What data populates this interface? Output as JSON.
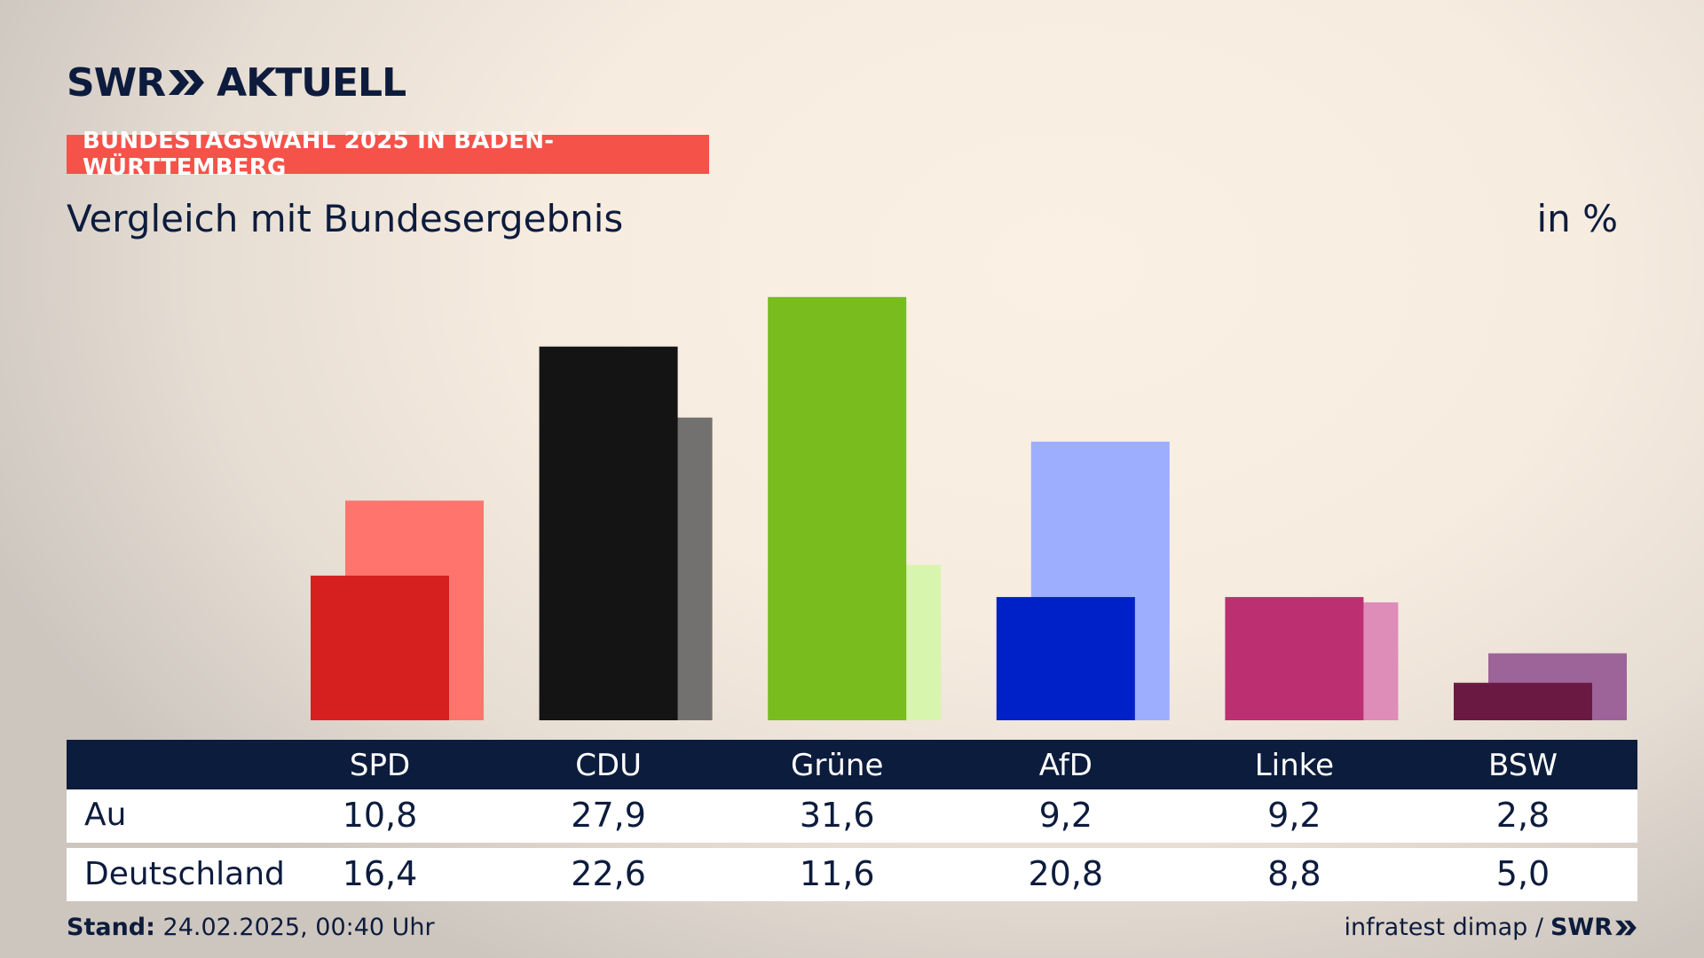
{
  "logo": {
    "brand": "SWR",
    "title": "AKTUELL"
  },
  "badge": "BUNDESTAGSWAHL 2025 IN BADEN-WÜRTTEMBERG",
  "subtitle": "Vergleich mit Bundesergebnis",
  "unit": "in %",
  "colors": {
    "background": "#f7ece0",
    "badge": "#f5524a",
    "header": "#0c1c3c",
    "text": "#0d1c3d"
  },
  "chart_data": {
    "type": "bar",
    "categories": [
      "SPD",
      "CDU",
      "Grüne",
      "AfD",
      "Linke",
      "BSW"
    ],
    "series": [
      {
        "name": "Au",
        "values": [
          10.8,
          27.9,
          31.6,
          9.2,
          9.2,
          2.8
        ],
        "colors": [
          "#d62020",
          "#141414",
          "#78bc1e",
          "#0020c8",
          "#bc3072",
          "#6a1a42"
        ]
      },
      {
        "name": "Deutschland",
        "values": [
          16.4,
          22.6,
          11.6,
          20.8,
          8.8,
          5.0
        ],
        "colors": [
          "#ff756d",
          "#737170",
          "#d8f5ae",
          "#9eaeff",
          "#de8cb8",
          "#9c6498"
        ]
      }
    ],
    "grid": false,
    "legend": "table-below"
  },
  "table": {
    "row_labels": [
      "Au",
      "Deutschland"
    ],
    "formatted": [
      [
        "10,8",
        "27,9",
        "31,6",
        "9,2",
        "9,2",
        "2,8"
      ],
      [
        "16,4",
        "22,6",
        "11,6",
        "20,8",
        "8,8",
        "5,0"
      ]
    ]
  },
  "footer": {
    "stand_label": "Stand:",
    "stand_value": "24.02.2025, 00:40 Uhr",
    "source": "infratest dimap /",
    "source_brand": "SWR"
  }
}
